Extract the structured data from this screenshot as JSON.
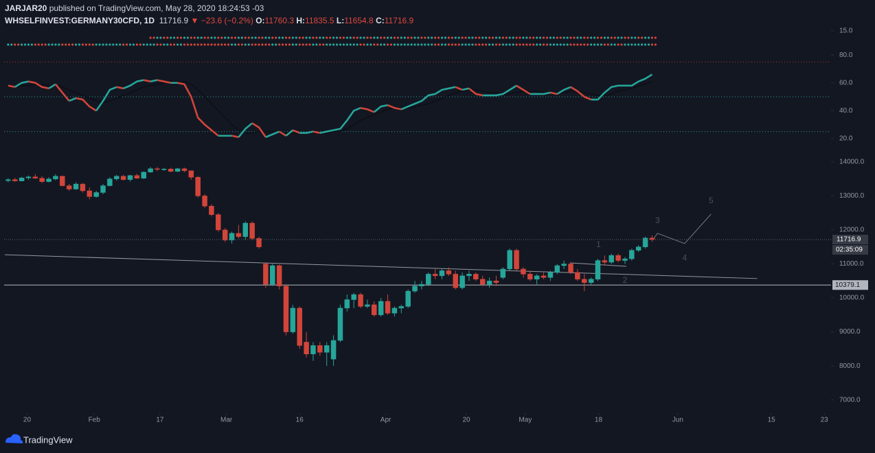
{
  "header": {
    "author": "JARJAR20",
    "published": "published on TradingView.com, May 28, 2020 18:24:53 -03",
    "symbol": "WHSELFINVEST:GERMANY30CFD, 1D",
    "arrow": "▼",
    "change": "−23.6 (−0.2%)",
    "o_label": "O:",
    "h_label": "H:",
    "l_label": "L:",
    "c_label": "C:",
    "countdown": "02:35:09",
    "brand": "TradingView"
  },
  "chart_data": {
    "type": "candlestick",
    "up_color": "#26a69a",
    "down_color": "#d2453a",
    "ohlc": [
      [
        13450,
        13520,
        13400,
        13480
      ],
      [
        13480,
        13530,
        13420,
        13440
      ],
      [
        13440,
        13560,
        13430,
        13530
      ],
      [
        13530,
        13600,
        13480,
        13560
      ],
      [
        13560,
        13640,
        13500,
        13520
      ],
      [
        13520,
        13580,
        13380,
        13420
      ],
      [
        13420,
        13550,
        13400,
        13500
      ],
      [
        13500,
        13640,
        13460,
        13580
      ],
      [
        13580,
        13600,
        13280,
        13300
      ],
      [
        13300,
        13350,
        13150,
        13200
      ],
      [
        13200,
        13400,
        13180,
        13350
      ],
      [
        13350,
        13380,
        13100,
        13150
      ],
      [
        13150,
        13250,
        12900,
        12980
      ],
      [
        12980,
        13150,
        12950,
        13100
      ],
      [
        13100,
        13350,
        13050,
        13300
      ],
      [
        13300,
        13550,
        13280,
        13500
      ],
      [
        13500,
        13620,
        13450,
        13580
      ],
      [
        13580,
        13620,
        13450,
        13480
      ],
      [
        13480,
        13620,
        13420,
        13600
      ],
      [
        13600,
        13650,
        13500,
        13520
      ],
      [
        13520,
        13720,
        13500,
        13700
      ],
      [
        13700,
        13850,
        13680,
        13800
      ],
      [
        13800,
        13850,
        13730,
        13780
      ],
      [
        13780,
        13820,
        13740,
        13790
      ],
      [
        13790,
        13830,
        13700,
        13720
      ],
      [
        13720,
        13820,
        13700,
        13800
      ],
      [
        13800,
        13830,
        13700,
        13740
      ],
      [
        13740,
        13750,
        13480,
        13550
      ],
      [
        13550,
        13580,
        12950,
        13000
      ],
      [
        13000,
        13050,
        12650,
        12700
      ],
      [
        12700,
        12750,
        12400,
        12450
      ],
      [
        12450,
        12500,
        11950,
        12000
      ],
      [
        12000,
        12050,
        11650,
        11700
      ],
      [
        11700,
        11950,
        11600,
        11900
      ],
      [
        11900,
        12150,
        11750,
        11800
      ],
      [
        11800,
        12250,
        11700,
        12200
      ],
      [
        12200,
        12250,
        11700,
        11750
      ],
      [
        11750,
        11800,
        11450,
        11500
      ],
      [
        11000,
        11050,
        10300,
        10400
      ],
      [
        10400,
        11000,
        10350,
        10950
      ],
      [
        10950,
        10980,
        10250,
        10350
      ],
      [
        10350,
        10400,
        8900,
        9000
      ],
      [
        9000,
        9800,
        8950,
        9700
      ],
      [
        9700,
        9750,
        8500,
        8600
      ],
      [
        8700,
        9000,
        8250,
        8350
      ],
      [
        8350,
        8700,
        8150,
        8600
      ],
      [
        8600,
        8700,
        8300,
        8400
      ],
      [
        8400,
        8700,
        8000,
        8600
      ],
      [
        8200,
        8900,
        8000,
        8750
      ],
      [
        8750,
        9800,
        8700,
        9700
      ],
      [
        9700,
        10100,
        9600,
        9950
      ],
      [
        9950,
        10150,
        9700,
        10100
      ],
      [
        10100,
        10150,
        9700,
        9750
      ],
      [
        9750,
        9950,
        9700,
        9800
      ],
      [
        9800,
        9900,
        9450,
        9500
      ],
      [
        9500,
        10000,
        9450,
        9900
      ],
      [
        9900,
        10100,
        9500,
        9550
      ],
      [
        9550,
        9750,
        9450,
        9700
      ],
      [
        9700,
        9800,
        9550,
        9750
      ],
      [
        9750,
        10250,
        9700,
        10200
      ],
      [
        10200,
        10500,
        10150,
        10350
      ],
      [
        10350,
        10500,
        10250,
        10400
      ],
      [
        10400,
        10750,
        10350,
        10700
      ],
      [
        10700,
        10850,
        10550,
        10650
      ],
      [
        10650,
        10850,
        10550,
        10800
      ],
      [
        10800,
        10900,
        10650,
        10700
      ],
      [
        10700,
        10800,
        10250,
        10300
      ],
      [
        10300,
        10750,
        10250,
        10650
      ],
      [
        10650,
        10800,
        10500,
        10700
      ],
      [
        10700,
        10750,
        10500,
        10550
      ],
      [
        10550,
        10650,
        10350,
        10400
      ],
      [
        10400,
        10600,
        10300,
        10500
      ],
      [
        10500,
        10650,
        10350,
        10450
      ],
      [
        10600,
        10900,
        10550,
        10850
      ],
      [
        10850,
        11450,
        10800,
        11400
      ],
      [
        11400,
        11450,
        10800,
        10850
      ],
      [
        10850,
        10900,
        10600,
        10700
      ],
      [
        10700,
        10800,
        10500,
        10550
      ],
      [
        10550,
        10700,
        10400,
        10650
      ],
      [
        10650,
        10750,
        10550,
        10600
      ],
      [
        10600,
        10800,
        10500,
        10750
      ],
      [
        10750,
        11000,
        10700,
        10950
      ],
      [
        10950,
        11100,
        10850,
        11000
      ],
      [
        11000,
        11050,
        10700,
        10750
      ],
      [
        10750,
        10850,
        10500,
        10550
      ],
      [
        10550,
        10700,
        10200,
        10450
      ],
      [
        10450,
        10600,
        10400,
        10550
      ],
      [
        10550,
        11150,
        10500,
        11100
      ],
      [
        11100,
        11250,
        10950,
        11050
      ],
      [
        11050,
        11300,
        11000,
        11250
      ],
      [
        11250,
        11300,
        11050,
        11100
      ],
      [
        11100,
        11200,
        11000,
        11150
      ],
      [
        11150,
        11450,
        11100,
        11400
      ],
      [
        11400,
        11550,
        11350,
        11500
      ],
      [
        11500,
        11800,
        11450,
        11760
      ],
      [
        11760.3,
        11835.5,
        11654.8,
        11716.9
      ]
    ],
    "xlim": [
      -1.2,
      121.4
    ],
    "xticks": [
      {
        "value": 2.8,
        "label": "20"
      },
      {
        "value": 12.7,
        "label": "Feb"
      },
      {
        "value": 22.4,
        "label": "17"
      },
      {
        "value": 32.2,
        "label": "Mar"
      },
      {
        "value": 43,
        "label": "16"
      },
      {
        "value": 55.7,
        "label": "Apr"
      },
      {
        "value": 67.6,
        "label": "20"
      },
      {
        "value": 76.3,
        "label": "May"
      },
      {
        "value": 87.1,
        "label": "18"
      },
      {
        "value": 98.8,
        "label": "Jun"
      },
      {
        "value": 112.6,
        "label": "15"
      },
      {
        "value": 120.4,
        "label": "23"
      }
    ],
    "ylim": [
      6650,
      14220
    ],
    "yticks": [
      {
        "value": 7000,
        "label": "7000.0"
      },
      {
        "value": 8000,
        "label": "8000.0"
      },
      {
        "value": 9000,
        "label": "9000.0"
      },
      {
        "value": 10000,
        "label": "10000.0"
      },
      {
        "value": 11000,
        "label": "11000.0"
      },
      {
        "value": 12000,
        "label": "12000.0"
      },
      {
        "value": 13000,
        "label": "13000.0"
      },
      {
        "value": 14000,
        "label": "14000.0"
      }
    ],
    "hlines": [
      10379.1
    ],
    "trendlines": [
      [
        [
          -0.5,
          11270
        ],
        [
          110.5,
          10570
        ]
      ],
      [
        [
          82.9,
          11030
        ],
        [
          91.2,
          10930
        ]
      ]
    ],
    "wave_line": [
      [
        95.2,
        11737
      ],
      [
        95.8,
        11900
      ],
      [
        99.8,
        11600
      ],
      [
        103.7,
        12465
      ]
    ],
    "wave_labels": [
      {
        "text": "1",
        "x": 87.1,
        "y": 11555
      },
      {
        "text": "2",
        "x": 91,
        "y": 10505
      },
      {
        "text": "3",
        "x": 95.8,
        "y": 12262
      },
      {
        "text": "4",
        "x": 99.8,
        "y": 11170
      },
      {
        "text": "5",
        "x": 103.7,
        "y": 12850
      }
    ],
    "indicator": {
      "type": "line",
      "values": [
        58,
        57,
        60,
        61,
        60,
        57,
        56,
        59,
        53,
        47,
        49,
        48,
        43,
        40,
        47,
        55,
        57,
        56,
        58,
        61,
        62,
        61,
        62,
        61,
        60,
        60,
        59,
        50,
        35,
        30,
        26,
        22,
        22,
        22,
        21,
        27,
        31,
        28,
        21,
        23,
        25,
        22,
        26,
        24,
        24,
        25,
        24,
        25,
        26,
        27,
        33,
        40,
        42,
        41,
        39,
        43,
        44,
        42,
        41,
        43,
        45,
        47,
        51,
        52,
        55,
        56,
        57,
        55,
        56,
        52,
        51,
        51,
        51,
        52,
        55,
        58,
        55,
        52,
        52,
        52,
        53,
        52,
        55,
        57,
        54,
        50,
        48,
        48,
        53,
        57,
        58,
        58,
        58,
        61,
        63,
        66
      ],
      "ma": [
        57,
        57,
        58,
        58,
        59,
        59,
        58,
        58,
        57,
        55,
        53,
        51,
        49,
        47,
        46,
        47,
        49,
        51,
        53,
        55,
        57,
        58,
        59,
        60,
        61,
        61,
        61,
        59,
        55,
        50,
        45,
        40,
        35,
        30,
        26,
        24,
        24,
        25,
        25,
        25,
        25,
        24,
        24,
        24,
        24,
        24,
        24,
        24,
        25,
        25,
        27,
        30,
        33,
        35,
        37,
        39,
        41,
        42,
        42,
        42,
        43,
        44,
        45,
        47,
        49,
        51,
        53,
        54,
        55,
        55,
        54,
        53,
        53,
        52,
        52,
        53,
        54,
        54,
        54,
        53,
        53,
        53,
        53,
        54,
        54,
        53,
        52,
        51,
        51,
        52,
        54,
        55,
        56,
        58,
        59,
        61
      ],
      "ylim": [
        14,
        85
      ],
      "yticks": [
        {
          "value": 20,
          "label": "20.0"
        },
        {
          "value": 40,
          "label": "40.0"
        },
        {
          "value": 60,
          "label": "60.0"
        },
        {
          "value": 80,
          "label": "80.0"
        }
      ],
      "levels": [
        {
          "value": 75,
          "color": "#c0392b"
        },
        {
          "value": 50,
          "color": "#26a69a"
        },
        {
          "value": 25,
          "color": "#26a69a"
        }
      ]
    },
    "dots_pane": {
      "yticks": [
        {
          "value": 15,
          "label": "15.0"
        }
      ]
    }
  }
}
